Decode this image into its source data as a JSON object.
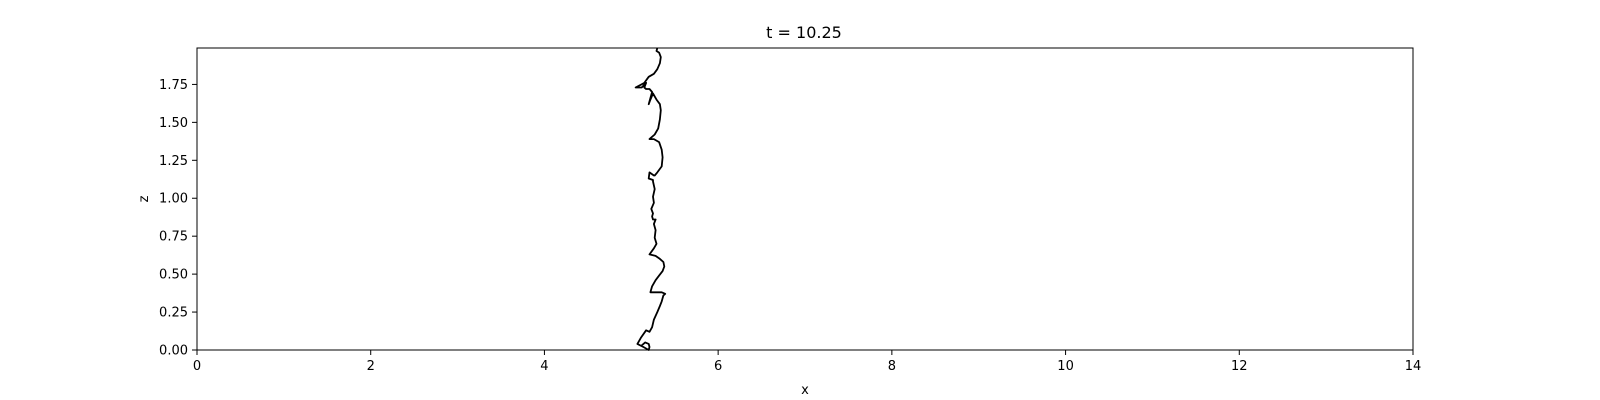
{
  "chart_data": {
    "type": "line",
    "title": "t = 10.25",
    "xlabel": "x",
    "ylabel": "z",
    "xlim": [
      0,
      14
    ],
    "ylim": [
      0,
      1.99
    ],
    "xticks": [
      0,
      2,
      4,
      6,
      8,
      10,
      12,
      14
    ],
    "xtick_labels": [
      "0",
      "2",
      "4",
      "6",
      "8",
      "10",
      "12",
      "14"
    ],
    "yticks": [
      0,
      0.25,
      0.5,
      0.75,
      1.0,
      1.25,
      1.5,
      1.75
    ],
    "ytick_labels": [
      "0.00",
      "0.25",
      "0.50",
      "0.75",
      "1.00",
      "1.25",
      "1.50",
      "1.75"
    ],
    "grid": false,
    "line_color": "#000000",
    "series": [
      {
        "x": [
          5.12,
          5.16,
          5.2,
          5.21,
          5.2,
          5.14,
          5.07,
          5.11,
          5.17,
          5.21,
          5.24,
          5.26,
          5.3,
          5.33,
          5.35,
          5.37,
          5.39,
          5.35,
          5.29,
          5.22,
          5.24,
          5.28,
          5.32,
          5.36,
          5.38,
          5.37,
          5.33,
          5.28,
          5.21,
          5.26,
          5.29,
          5.27,
          5.28,
          5.26,
          5.28,
          5.25,
          5.24,
          5.25,
          5.23,
          5.26,
          5.25,
          5.27,
          5.25,
          5.25,
          5.2,
          5.21,
          5.26,
          5.27,
          5.3,
          5.35,
          5.36,
          5.35,
          5.32,
          5.26,
          5.21,
          5.27,
          5.31,
          5.33,
          5.34,
          5.33,
          5.29,
          5.25,
          5.22,
          5.2,
          5.24,
          5.21,
          5.17,
          5.15,
          5.17,
          5.12,
          5.05,
          5.15,
          5.2,
          5.23,
          5.26,
          5.3,
          5.33,
          5.34,
          5.32,
          5.29,
          5.3
        ],
        "y": [
          0.03,
          0.05,
          0.04,
          0.02,
          0.0,
          0.02,
          0.04,
          0.08,
          0.13,
          0.12,
          0.15,
          0.2,
          0.25,
          0.29,
          0.32,
          0.36,
          0.37,
          0.38,
          0.38,
          0.38,
          0.42,
          0.46,
          0.49,
          0.52,
          0.55,
          0.58,
          0.6,
          0.62,
          0.63,
          0.67,
          0.7,
          0.74,
          0.79,
          0.83,
          0.86,
          0.86,
          0.88,
          0.9,
          0.93,
          0.97,
          1.01,
          1.06,
          1.11,
          1.12,
          1.13,
          1.17,
          1.15,
          1.15,
          1.17,
          1.21,
          1.27,
          1.32,
          1.37,
          1.39,
          1.39,
          1.42,
          1.46,
          1.52,
          1.58,
          1.62,
          1.65,
          1.69,
          1.65,
          1.62,
          1.7,
          1.72,
          1.72,
          1.73,
          1.76,
          1.73,
          1.73,
          1.76,
          1.8,
          1.81,
          1.82,
          1.85,
          1.89,
          1.93,
          1.96,
          1.97,
          1.99
        ]
      }
    ]
  }
}
